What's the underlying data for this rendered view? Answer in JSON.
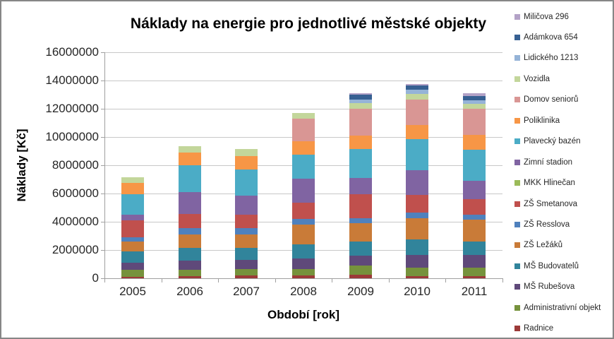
{
  "theme": {
    "background": "#FFFFFF",
    "border": "#868686",
    "grid": "#C8C8C8",
    "axis": "#A0A0A0",
    "text": "#262626",
    "title_text": "#000000"
  },
  "chart_data": {
    "type": "bar",
    "stacked": true,
    "title": "Náklady na energie pro jednotlivé městské objekty",
    "xlabel": "Období [rok]",
    "ylabel": "Náklady [Kč]",
    "categories": [
      "2005",
      "2006",
      "2007",
      "2008",
      "2009",
      "2010",
      "2011"
    ],
    "ylim": [
      0,
      16000000
    ],
    "ytick_step": 2000000,
    "ytick_labels": [
      "0",
      "2000000",
      "4000000",
      "6000000",
      "8000000",
      "10000000",
      "12000000",
      "14000000",
      "16000000"
    ],
    "grid": true,
    "legend_position": "right",
    "legend_note": "legend lists series top-to-bottom in reverse stack order; stack order below is bottom-to-top",
    "series": [
      {
        "name": "Radnice",
        "color": "#9C3A38",
        "values": [
          110000,
          160000,
          190000,
          190000,
          240000,
          160000,
          160000
        ]
      },
      {
        "name": "Administrativní objekt",
        "color": "#76923C",
        "values": [
          470000,
          420000,
          470000,
          470000,
          670000,
          580000,
          580000
        ]
      },
      {
        "name": "MŠ Rubešova",
        "color": "#5F497A",
        "values": [
          500000,
          660000,
          630000,
          750000,
          670000,
          920000,
          920000
        ]
      },
      {
        "name": "MŠ Budovatelů",
        "color": "#31849B",
        "values": [
          830000,
          920000,
          870000,
          1000000,
          1000000,
          1080000,
          920000
        ]
      },
      {
        "name": "ZŠ Ležáků",
        "color": "#C97B38",
        "values": [
          670000,
          920000,
          920000,
          1370000,
          1340000,
          1510000,
          1590000
        ]
      },
      {
        "name": "ZŠ Resslova",
        "color": "#4F81BD",
        "values": [
          330000,
          450000,
          450000,
          440000,
          330000,
          420000,
          330000
        ]
      },
      {
        "name": "ZŠ Smetanova",
        "color": "#C0504D",
        "values": [
          1210000,
          1000000,
          970000,
          1110000,
          1700000,
          1250000,
          1080000
        ]
      },
      {
        "name": "MKK Hlinečan",
        "color": "#9BBB59",
        "values": [
          0,
          0,
          0,
          0,
          0,
          0,
          0
        ]
      },
      {
        "name": "Zimní stadion",
        "color": "#8064A2",
        "values": [
          380000,
          1550000,
          1370000,
          1700000,
          1170000,
          1750000,
          1340000
        ]
      },
      {
        "name": "Plavecký bazén",
        "color": "#4BACC6",
        "values": [
          1450000,
          1920000,
          1830000,
          1720000,
          2050000,
          2170000,
          2200000
        ]
      },
      {
        "name": "Poliklinika",
        "color": "#F79646",
        "values": [
          800000,
          920000,
          940000,
          950000,
          950000,
          1000000,
          1050000
        ]
      },
      {
        "name": "Domov seniorů",
        "color": "#D99694",
        "values": [
          0,
          0,
          0,
          1610000,
          1890000,
          1800000,
          1840000
        ]
      },
      {
        "name": "Vozidla",
        "color": "#C3D69B",
        "values": [
          420000,
          420000,
          500000,
          400000,
          370000,
          420000,
          330000
        ]
      },
      {
        "name": "Lidického 1213",
        "color": "#95B3D7",
        "values": [
          0,
          0,
          0,
          0,
          250000,
          300000,
          250000
        ]
      },
      {
        "name": "Adámkova 654",
        "color": "#376092",
        "values": [
          0,
          0,
          0,
          0,
          380000,
          280000,
          330000
        ]
      },
      {
        "name": "Miličova 296",
        "color": "#B3A2C7",
        "values": [
          0,
          0,
          0,
          0,
          100000,
          100000,
          170000
        ]
      }
    ]
  }
}
